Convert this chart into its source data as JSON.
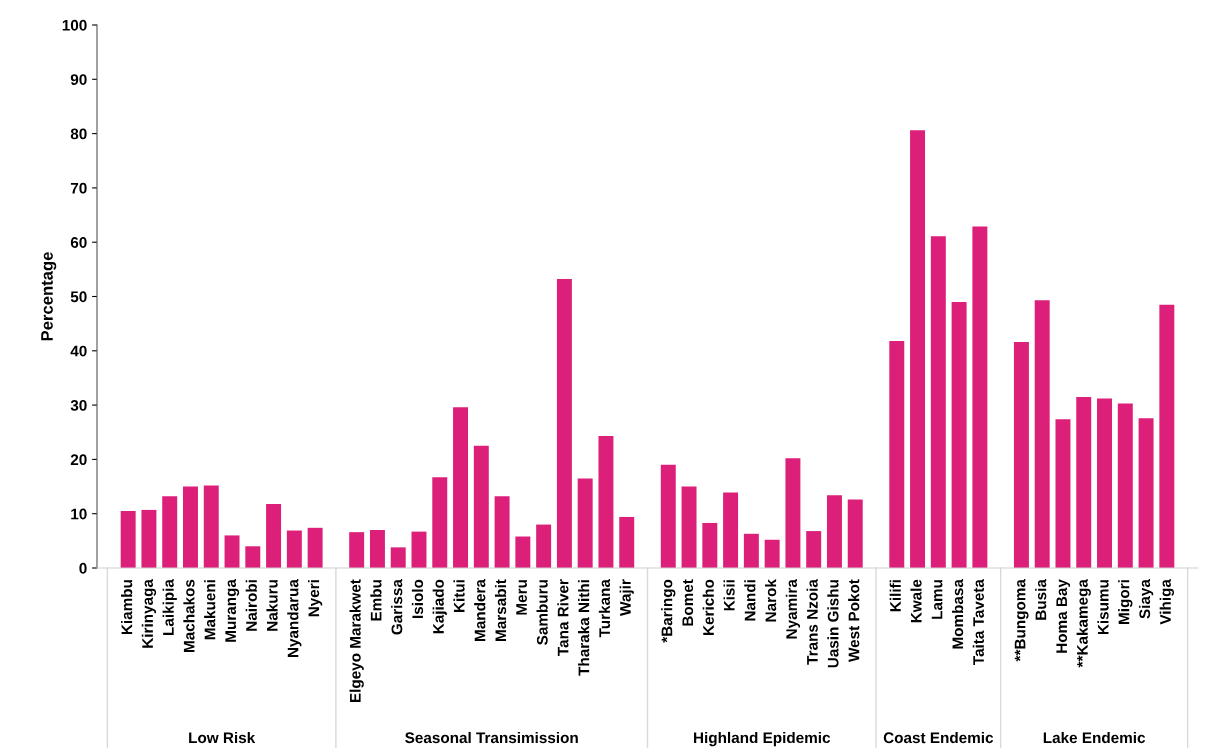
{
  "chart_data": {
    "type": "bar",
    "ylabel": "Percentage",
    "color": "#dc1f78",
    "categories": [
      null,
      "Kiambu",
      "Kirinyaga",
      "Laikipia",
      "Machakos",
      "Makueni",
      "Muranga",
      "Nairobi",
      "Nakuru",
      "Nyandarua",
      "Nyeri",
      null,
      "Elgeyo Marakwet",
      "Embu",
      "Garissa",
      "Isiolo",
      "Kajiado",
      "Kitui",
      "Mandera",
      "Marsabit",
      "Meru",
      "Samburu",
      "Tana River",
      "Tharaka Nithi",
      "Turkana",
      "Wajir",
      null,
      "*Baringo",
      "Bomet",
      "Kericho",
      "Kisii",
      "Nandi",
      "Narok",
      "Nyamira",
      "Trans Nzoia",
      "Uasin Gishu",
      "West Pokot",
      null,
      "Kilifi",
      "Kwale",
      "Lamu",
      "Mombasa",
      "Taita Taveta",
      null,
      "**Bungoma",
      "Busia",
      "Homa Bay",
      "**Kakamega",
      "Kisumu",
      "Migori",
      "Siaya",
      "Vihiga",
      null
    ],
    "values": [
      null,
      10.5,
      10.7,
      13.2,
      15.0,
      15.2,
      6.0,
      4.0,
      11.8,
      6.9,
      7.4,
      null,
      6.6,
      7.0,
      3.8,
      6.7,
      16.7,
      29.6,
      22.5,
      13.2,
      5.8,
      8.0,
      53.2,
      16.5,
      24.3,
      9.4,
      null,
      19.0,
      15.0,
      8.3,
      13.9,
      6.3,
      5.2,
      20.2,
      6.8,
      13.4,
      12.6,
      null,
      41.8,
      80.6,
      61.1,
      49.0,
      62.9,
      null,
      41.6,
      49.3,
      27.4,
      31.5,
      31.2,
      30.3,
      27.6,
      48.5,
      null
    ],
    "annotations": [
      "Low Risk",
      "Seasonal Transimission",
      "Highland Epidemic",
      "Coast Endemic",
      "Lake Endemic"
    ],
    "ylim": [
      0,
      100
    ],
    "yticks": [
      0,
      10,
      20,
      30,
      40,
      50,
      60,
      70,
      80,
      90,
      100
    ],
    "grid": false,
    "legend": false
  }
}
